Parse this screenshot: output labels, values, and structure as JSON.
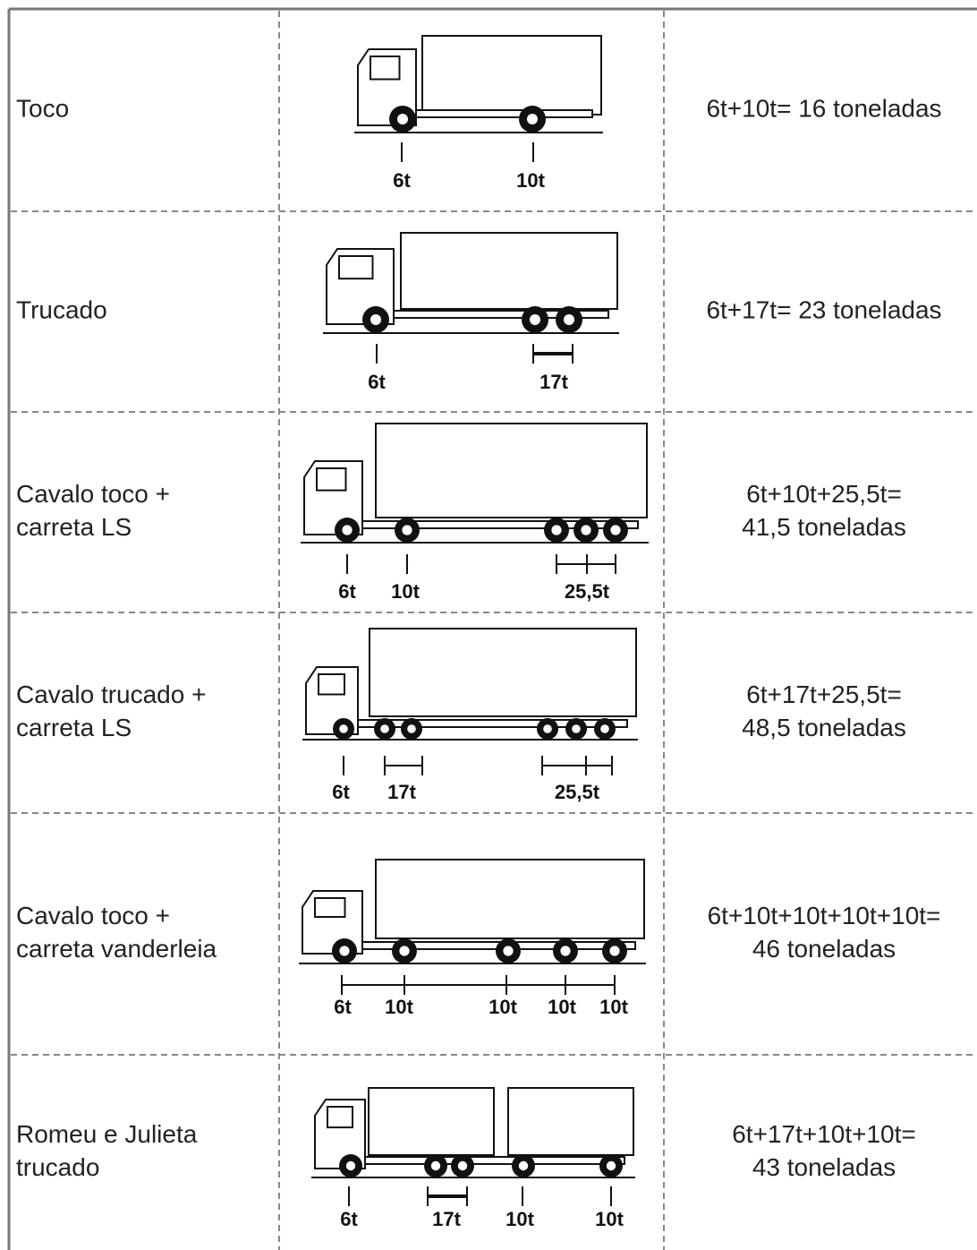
{
  "table": {
    "rows": [
      {
        "name": [
          "Toco"
        ],
        "axles": [
          "6t",
          "10t"
        ],
        "total": [
          "6t+10t= 16 toneladas"
        ]
      },
      {
        "name": [
          "Trucado"
        ],
        "axles": [
          "6t",
          "17t"
        ],
        "total": [
          "6t+17t= 23 toneladas"
        ]
      },
      {
        "name": [
          "Cavalo toco +",
          "carreta LS"
        ],
        "axles": [
          "6t",
          "10t",
          "25,5t"
        ],
        "total": [
          "6t+10t+25,5t=",
          "41,5 toneladas"
        ]
      },
      {
        "name": [
          "Cavalo trucado +",
          "carreta LS"
        ],
        "axles": [
          "6t",
          "17t",
          "25,5t"
        ],
        "total": [
          "6t+17t+25,5t=",
          "48,5 toneladas"
        ]
      },
      {
        "name": [
          "Cavalo toco +",
          "carreta vanderleia"
        ],
        "axles": [
          "6t",
          "10t",
          "10t",
          "10t",
          "10t"
        ],
        "total": [
          "6t+10t+10t+10t+10t=",
          "46 toneladas"
        ]
      },
      {
        "name": [
          "Romeu e Julieta",
          "trucado"
        ],
        "axles": [
          "6t",
          "17t",
          "10t",
          "10t"
        ],
        "total": [
          "6t+17t+10t+10t=",
          "43 toneladas"
        ]
      }
    ]
  }
}
